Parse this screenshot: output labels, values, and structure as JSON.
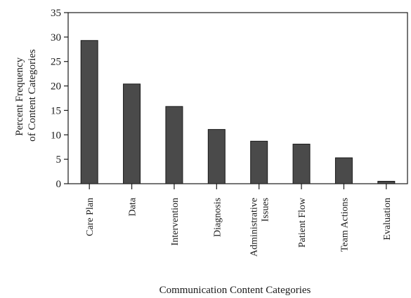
{
  "chart_data": {
    "type": "bar",
    "categories": [
      "Care Plan",
      "Data",
      "Intervention",
      "Diagnosis",
      "Administrative Issues",
      "Patient Flow",
      "Team Actions",
      "Evaluation"
    ],
    "category_lines": [
      [
        "Care Plan"
      ],
      [
        "Data"
      ],
      [
        "Intervention"
      ],
      [
        "Diagnosis"
      ],
      [
        "Administrative",
        "Issues"
      ],
      [
        "Patient Flow"
      ],
      [
        "Team Actions"
      ],
      [
        "Evaluation"
      ]
    ],
    "values": [
      29.3,
      20.4,
      15.8,
      11.1,
      8.7,
      8.1,
      5.3,
      0.5
    ],
    "ylim": [
      0,
      35
    ],
    "yticks": [
      0,
      5,
      10,
      15,
      20,
      25,
      30,
      35
    ],
    "ytick_labels": [
      "0",
      "5",
      "10",
      "15",
      "20",
      "25",
      "30",
      "35"
    ],
    "xlabel": "Communication Content Categories",
    "ylabel_lines": [
      "Percent Frequency",
      "of Content Categories"
    ],
    "grid": false,
    "bar_color": "#4a4a4a"
  }
}
